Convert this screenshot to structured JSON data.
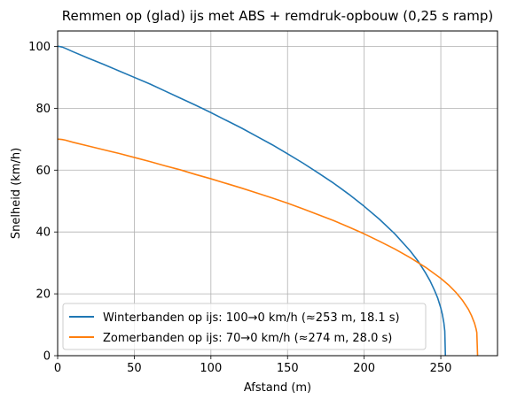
{
  "chart_data": {
    "type": "line",
    "title": "Remmen op (glad) ijs met ABS + remdruk-opbouw (0,25 s ramp)",
    "xlabel": "Afstand (m)",
    "ylabel": "Snelheid (km/h)",
    "xlim": [
      0,
      287
    ],
    "ylim": [
      0,
      105
    ],
    "xticks": [
      0,
      50,
      100,
      150,
      200,
      250
    ],
    "yticks": [
      0,
      20,
      40,
      60,
      80,
      100
    ],
    "grid": true,
    "legend_position": "lower-left",
    "series": [
      {
        "name": "Winterbanden op ijs: 100→0 km/h (≈253 m, 18.1 s)",
        "color": "#1f77b4",
        "x": [
          0,
          1,
          3,
          5,
          10,
          20,
          30,
          40,
          50,
          60,
          70,
          80,
          90,
          100,
          110,
          120,
          130,
          140,
          150,
          160,
          170,
          180,
          190,
          200,
          210,
          220,
          230,
          235,
          240,
          243,
          246,
          248,
          250,
          251,
          252,
          252.6,
          253
        ],
        "y": [
          100,
          100,
          99.8,
          99.4,
          98.3,
          96.2,
          94.2,
          92.1,
          90.0,
          87.9,
          85.6,
          83.3,
          81.0,
          78.6,
          76.1,
          73.6,
          70.9,
          68.2,
          65.3,
          62.3,
          59.1,
          55.8,
          52.2,
          48.3,
          44.1,
          39.4,
          33.9,
          30.7,
          26.8,
          24.2,
          21.0,
          18.6,
          15.4,
          13.4,
          10.6,
          8.0,
          0
        ]
      },
      {
        "name": "Zomerbanden op ijs: 70→0 km/h (≈274 m, 28.0 s)",
        "color": "#ff7f0e",
        "x": [
          0,
          1,
          3,
          5,
          10,
          20,
          30,
          40,
          50,
          60,
          70,
          80,
          90,
          100,
          110,
          120,
          130,
          140,
          150,
          160,
          170,
          180,
          190,
          200,
          210,
          220,
          230,
          240,
          250,
          255,
          260,
          264,
          268,
          270,
          272,
          273,
          273.5,
          274
        ],
        "y": [
          70,
          70,
          69.9,
          69.7,
          69.0,
          67.8,
          66.6,
          65.4,
          64.1,
          62.8,
          61.4,
          60.1,
          58.6,
          57.2,
          55.7,
          54.2,
          52.6,
          51.0,
          49.3,
          47.5,
          45.6,
          43.7,
          41.6,
          39.4,
          37.0,
          34.5,
          31.7,
          28.6,
          25.0,
          22.9,
          20.4,
          18.0,
          15.0,
          13.0,
          10.5,
          8.7,
          7.5,
          0
        ]
      }
    ]
  }
}
